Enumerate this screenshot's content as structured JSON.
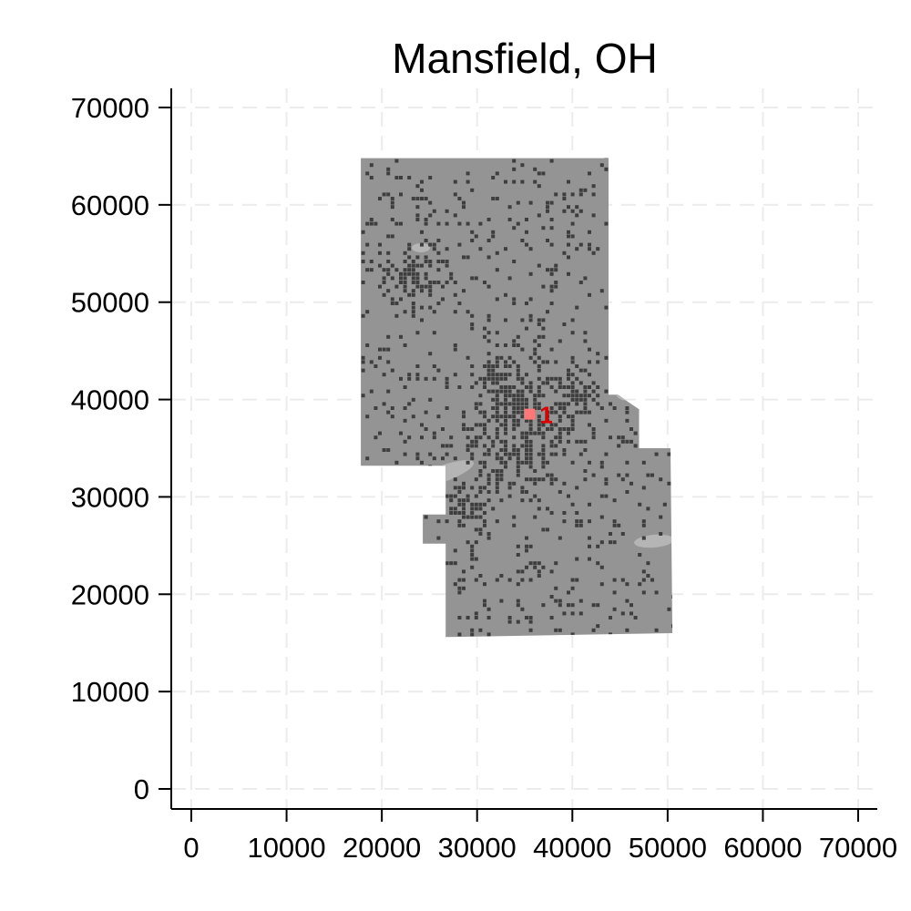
{
  "chart_data": {
    "type": "map",
    "title": "Mansfield, OH",
    "xlabel": "",
    "ylabel": "",
    "xlim": [
      -2000,
      72000
    ],
    "ylim": [
      -2000,
      72000
    ],
    "x_ticks": [
      0,
      10000,
      20000,
      30000,
      40000,
      50000,
      60000,
      70000
    ],
    "y_ticks": [
      0,
      10000,
      20000,
      30000,
      40000,
      50000,
      60000,
      70000
    ],
    "x_tick_labels": [
      "0",
      "10000",
      "20000",
      "30000",
      "40000",
      "50000",
      "60000",
      "70000"
    ],
    "y_tick_labels": [
      "0",
      "10000",
      "20000",
      "30000",
      "40000",
      "50000",
      "60000",
      "70000"
    ],
    "grid": true,
    "region_outline": [
      [
        17800,
        64800
      ],
      [
        43800,
        64800
      ],
      [
        43800,
        40500
      ],
      [
        44800,
        40500
      ],
      [
        45800,
        39800
      ],
      [
        47000,
        39000
      ],
      [
        47000,
        35000
      ],
      [
        50300,
        35000
      ],
      [
        50500,
        16000
      ],
      [
        26700,
        15600
      ],
      [
        26700,
        25200
      ],
      [
        24300,
        25200
      ],
      [
        24300,
        28200
      ],
      [
        26700,
        28200
      ],
      [
        26700,
        33200
      ],
      [
        17800,
        33200
      ]
    ],
    "hotspots": [
      {
        "x": 23000,
        "y": 52500,
        "r": 1800
      },
      {
        "x": 34000,
        "y": 39500,
        "r": 3200
      },
      {
        "x": 33500,
        "y": 35000,
        "r": 2500
      },
      {
        "x": 28500,
        "y": 29500,
        "r": 1300
      },
      {
        "x": 40000,
        "y": 40000,
        "r": 2000
      },
      {
        "x": 35500,
        "y": 23000,
        "r": 900
      },
      {
        "x": 32000,
        "y": 42000,
        "r": 1500
      }
    ],
    "marker": {
      "x": 35500,
      "y": 38500,
      "label": "1"
    },
    "colors": {
      "region_fill": "#949494",
      "cell_dark": "#3e3e3e",
      "light_patch": "#b5b5b5",
      "marker_fill": "#ff7777",
      "marker_label": "#dd0000"
    }
  }
}
